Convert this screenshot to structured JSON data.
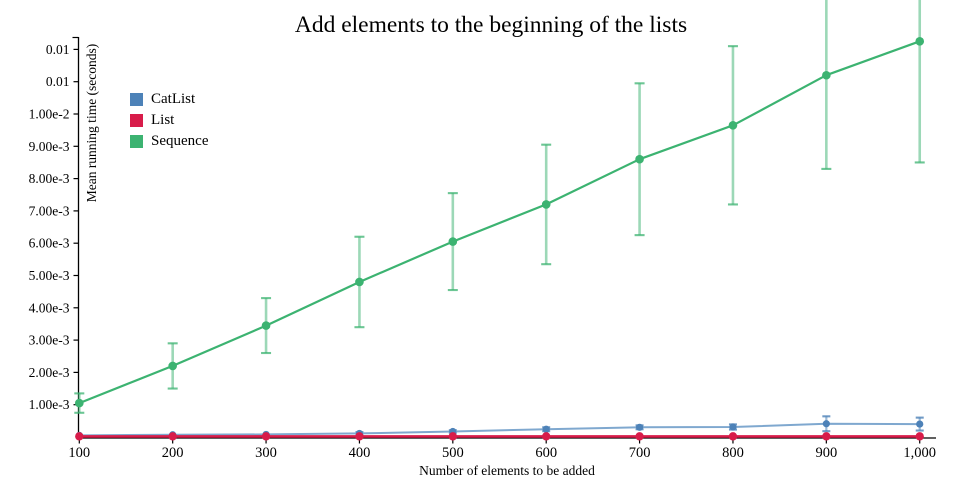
{
  "chart_data": {
    "type": "line",
    "title": "Add elements to the beginning of the lists",
    "xlabel": "Number of elements to be added",
    "ylabel": "Mean running time (seconds)",
    "x": [
      100,
      200,
      300,
      400,
      500,
      600,
      700,
      800,
      900,
      1000
    ],
    "x_tick_labels": [
      "100",
      "200",
      "300",
      "400",
      "500",
      "600",
      "700",
      "800",
      "900",
      "1,000"
    ],
    "y_ticks": [
      {
        "value": 0.012,
        "label": "0.01"
      },
      {
        "value": 0.011,
        "label": "0.01"
      },
      {
        "value": 0.01,
        "label": "1.00e-2"
      },
      {
        "value": 0.009,
        "label": "9.00e-3"
      },
      {
        "value": 0.008,
        "label": "8.00e-3"
      },
      {
        "value": 0.007,
        "label": "7.00e-3"
      },
      {
        "value": 0.006,
        "label": "6.00e-3"
      },
      {
        "value": 0.005,
        "label": "5.00e-3"
      },
      {
        "value": 0.004,
        "label": "4.00e-3"
      },
      {
        "value": 0.003,
        "label": "3.00e-3"
      },
      {
        "value": 0.002,
        "label": "2.00e-3"
      },
      {
        "value": 0.001,
        "label": "1.00e-3"
      }
    ],
    "xlim": [
      100,
      1000
    ],
    "ylim": [
      0,
      0.0136
    ],
    "grid": false,
    "legend_position": "upper-left-inside",
    "legend_order": [
      "CatList",
      "List",
      "Sequence"
    ],
    "series": [
      {
        "name": "CatList",
        "color": "#4d82b8",
        "line_color": "#7fa8cf",
        "values": [
          5e-05,
          7e-05,
          8e-05,
          0.00011,
          0.00017,
          0.00024,
          0.0003,
          0.00031,
          0.00041,
          0.0004
        ],
        "errors": [
          2e-05,
          2e-05,
          3e-05,
          4e-05,
          4e-05,
          6e-05,
          6e-05,
          8e-05,
          0.00023,
          0.0002
        ]
      },
      {
        "name": "List",
        "color": "#d81c4a",
        "line_color": "#d81c4a",
        "values": [
          2e-05,
          2e-05,
          2e-05,
          2e-05,
          2e-05,
          2e-05,
          2e-05,
          2e-05,
          2e-05,
          2e-05
        ],
        "errors": [
          1e-05,
          1e-05,
          1e-05,
          1e-05,
          1e-05,
          1e-05,
          1e-05,
          1e-05,
          1e-05,
          1e-05
        ]
      },
      {
        "name": "Sequence",
        "color": "#3cb371",
        "line_color": "#3cb371",
        "values": [
          0.00105,
          0.0022,
          0.00345,
          0.0048,
          0.00605,
          0.0072,
          0.0086,
          0.00965,
          0.0112,
          0.01225
        ],
        "errors": [
          0.0003,
          0.0007,
          0.00085,
          0.0014,
          0.0015,
          0.00185,
          0.00235,
          0.00245,
          0.0029,
          0.00375
        ]
      }
    ]
  }
}
